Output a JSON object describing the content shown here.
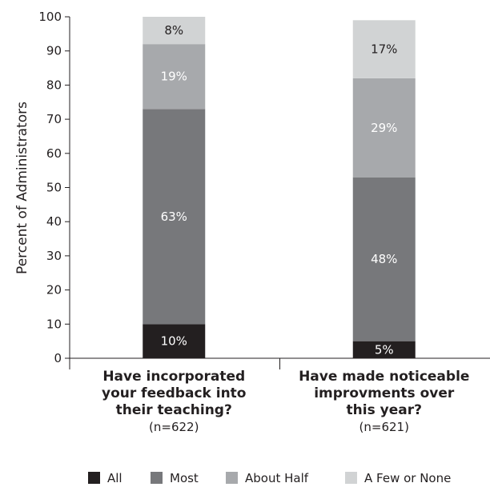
{
  "chart_data": {
    "type": "bar",
    "stacked": true,
    "title": "",
    "xlabel": "",
    "ylabel": "Percent of Administrators",
    "ylim": [
      0,
      100
    ],
    "yticks": [
      0,
      10,
      20,
      30,
      40,
      50,
      60,
      70,
      80,
      90,
      100
    ],
    "grid": false,
    "legend_position": "bottom",
    "categories": [
      {
        "lines": [
          "Have incorporated",
          "your feedback into",
          "their teaching?"
        ],
        "n": "(n=622)"
      },
      {
        "lines": [
          "Have made noticeable",
          "improvments over",
          "this year?"
        ],
        "n": "(n=621)"
      }
    ],
    "series": [
      {
        "name": "All",
        "color": "#231f20",
        "values": [
          10,
          5
        ],
        "labels": [
          "10%",
          "5%"
        ],
        "label_color": "#ffffff"
      },
      {
        "name": "Most",
        "color": "#77787b",
        "values": [
          63,
          48
        ],
        "labels": [
          "63%",
          "48%"
        ],
        "label_color": "#ffffff"
      },
      {
        "name": "About Half",
        "color": "#a7a9ac",
        "values": [
          19,
          29
        ],
        "labels": [
          "19%",
          "29%"
        ],
        "label_color": "#ffffff"
      },
      {
        "name": "A Few or None",
        "color": "#d1d3d4",
        "values": [
          8,
          17
        ],
        "labels": [
          "8%",
          "17%"
        ],
        "label_color": "#231f20"
      }
    ]
  }
}
